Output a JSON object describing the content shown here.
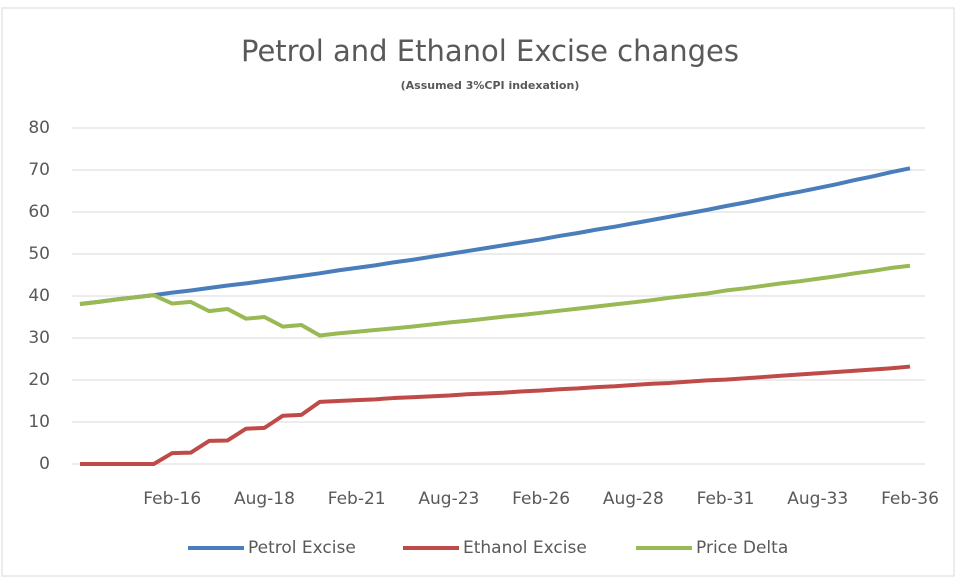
{
  "chart_data": {
    "type": "line",
    "title": "Petrol and Ethanol Excise changes",
    "subtitle": "(Assumed 3%CPI indexation)",
    "categories": [
      null,
      null,
      null,
      null,
      null,
      "Feb-16",
      null,
      null,
      null,
      null,
      "Aug-18",
      null,
      null,
      null,
      null,
      "Feb-21",
      null,
      null,
      null,
      null,
      "Aug-23",
      null,
      null,
      null,
      null,
      "Feb-26",
      null,
      null,
      null,
      null,
      "Aug-28",
      null,
      null,
      null,
      null,
      "Feb-31",
      null,
      null,
      null,
      null,
      "Aug-33",
      null,
      null,
      null,
      null,
      "Feb-36"
    ],
    "series": [
      {
        "name": "Petrol Excise",
        "color": "#4a7ebb",
        "values": [
          38.1,
          38.6,
          39.2,
          39.7,
          40.2,
          40.8,
          41.3,
          41.9,
          42.5,
          43.0,
          43.6,
          44.2,
          44.8,
          45.4,
          46.1,
          46.7,
          47.3,
          48.0,
          48.6,
          49.3,
          50.0,
          50.7,
          51.4,
          52.1,
          52.8,
          53.5,
          54.3,
          55.0,
          55.8,
          56.5,
          57.3,
          58.1,
          58.9,
          59.7,
          60.5,
          61.4,
          62.2,
          63.1,
          64.0,
          64.8,
          65.7,
          66.6,
          67.6,
          68.5,
          69.5,
          70.4
        ]
      },
      {
        "name": "Ethanol Excise",
        "color": "#be4b48",
        "values": [
          0,
          0,
          0,
          0,
          0,
          2.6,
          2.7,
          5.5,
          5.6,
          8.4,
          8.6,
          11.5,
          11.7,
          14.8,
          15.0,
          15.2,
          15.4,
          15.7,
          15.9,
          16.1,
          16.3,
          16.6,
          16.8,
          17.0,
          17.3,
          17.5,
          17.8,
          18.0,
          18.3,
          18.5,
          18.8,
          19.1,
          19.3,
          19.6,
          19.9,
          20.1,
          20.4,
          20.7,
          21.0,
          21.3,
          21.6,
          21.9,
          22.2,
          22.5,
          22.8,
          23.2
        ]
      },
      {
        "name": "Price Delta",
        "color": "#98b954",
        "values": [
          38.1,
          38.6,
          39.2,
          39.7,
          40.2,
          38.2,
          38.6,
          36.4,
          36.9,
          34.6,
          35.0,
          32.7,
          33.1,
          30.6,
          31.1,
          31.5,
          31.9,
          32.3,
          32.7,
          33.2,
          33.7,
          34.1,
          34.6,
          35.1,
          35.5,
          36.0,
          36.5,
          37.0,
          37.5,
          38.0,
          38.5,
          39.0,
          39.6,
          40.1,
          40.6,
          41.3,
          41.8,
          42.4,
          43.0,
          43.5,
          44.1,
          44.7,
          45.4,
          46.0,
          46.7,
          47.2
        ]
      }
    ],
    "ylim": [
      0,
      80
    ],
    "yticks": [
      0,
      10,
      20,
      30,
      40,
      50,
      60,
      70,
      80
    ],
    "grid": true,
    "legend": "bottom"
  }
}
